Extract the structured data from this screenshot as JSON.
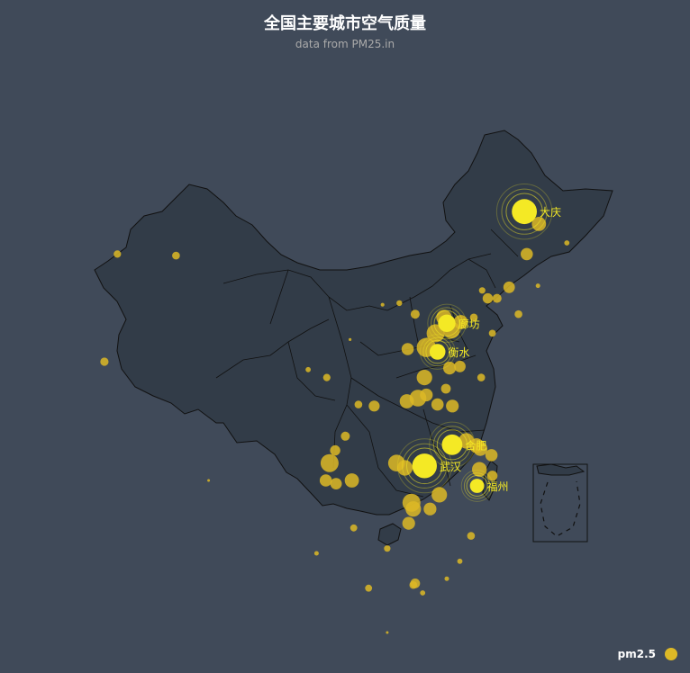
{
  "chart_data": {
    "type": "scatter",
    "title": "全国主要城市空气质量",
    "subtitle": "data from PM25.in",
    "legend": [
      "pm2.5"
    ],
    "legend_position": "bottom-right",
    "series": [
      {
        "name": "pm2.5",
        "points": [
          {
            "lon": 125.03,
            "lat": 46.58,
            "value": 279,
            "label": "大庆"
          },
          {
            "lon": 116.7,
            "lat": 39.53,
            "value": 193,
            "label": "廊坊"
          },
          {
            "lon": 115.7,
            "lat": 37.73,
            "value": 176,
            "label": "衡水"
          },
          {
            "lon": 117.27,
            "lat": 31.86,
            "value": 229,
            "label": "合肥"
          },
          {
            "lon": 114.31,
            "lat": 30.52,
            "value": 273,
            "label": "武汉"
          },
          {
            "lon": 119.95,
            "lat": 29.26,
            "value": 158,
            "label": "福州"
          }
        ]
      }
    ],
    "small_points": [
      [
        87.6,
        43.8,
        60
      ],
      [
        81.3,
        43.9,
        58
      ],
      [
        79.9,
        37.1,
        65
      ],
      [
        91.1,
        29.6,
        8
      ],
      [
        101.8,
        36.6,
        40
      ],
      [
        103.8,
        36.1,
        58
      ],
      [
        106.3,
        38.5,
        22
      ],
      [
        111.6,
        40.8,
        45
      ],
      [
        109.8,
        40.7,
        30
      ],
      [
        112.5,
        37.9,
        95
      ],
      [
        113.3,
        40.1,
        70
      ],
      [
        114.5,
        38.0,
        150
      ],
      [
        115.5,
        38.9,
        140
      ],
      [
        117.2,
        39.1,
        130
      ],
      [
        116.4,
        39.9,
        120
      ],
      [
        118.2,
        39.6,
        110
      ],
      [
        119.6,
        39.9,
        60
      ],
      [
        121.6,
        38.9,
        55
      ],
      [
        123.4,
        41.8,
        90
      ],
      [
        122.1,
        41.1,
        70
      ],
      [
        121.1,
        41.1,
        80
      ],
      [
        120.5,
        41.6,
        50
      ],
      [
        125.3,
        43.9,
        95
      ],
      [
        126.6,
        45.8,
        110
      ],
      [
        129.6,
        44.6,
        40
      ],
      [
        124.4,
        40.1,
        60
      ],
      [
        126.5,
        41.9,
        35
      ],
      [
        117.0,
        36.7,
        100
      ],
      [
        120.4,
        36.1,
        60
      ],
      [
        118.1,
        36.8,
        90
      ],
      [
        116.6,
        35.4,
        75
      ],
      [
        113.6,
        34.8,
        130
      ],
      [
        112.4,
        34.6,
        110
      ],
      [
        114.3,
        36.1,
        120
      ],
      [
        114.5,
        35.0,
        100
      ],
      [
        115.7,
        34.4,
        95
      ],
      [
        118.8,
        32.1,
        120
      ],
      [
        120.3,
        31.6,
        110
      ],
      [
        121.5,
        31.2,
        95
      ],
      [
        119.9,
        31.8,
        115
      ],
      [
        117.3,
        34.3,
        100
      ],
      [
        120.2,
        30.3,
        115
      ],
      [
        121.6,
        29.9,
        80
      ],
      [
        119.3,
        26.1,
        60
      ],
      [
        118.1,
        24.5,
        40
      ],
      [
        116.7,
        23.4,
        35
      ],
      [
        113.3,
        23.1,
        75
      ],
      [
        113.1,
        23.0,
        60
      ],
      [
        114.1,
        22.5,
        40
      ],
      [
        110.3,
        20.0,
        20
      ],
      [
        108.3,
        22.8,
        55
      ],
      [
        110.3,
        25.3,
        50
      ],
      [
        106.7,
        26.6,
        55
      ],
      [
        102.7,
        25.0,
        35
      ],
      [
        104.1,
        30.7,
        140
      ],
      [
        106.5,
        29.6,
        110
      ],
      [
        104.7,
        31.5,
        80
      ],
      [
        105.8,
        32.4,
        70
      ],
      [
        103.7,
        29.6,
        95
      ],
      [
        104.8,
        29.4,
        90
      ],
      [
        112.9,
        28.2,
        140
      ],
      [
        113.1,
        27.8,
        120
      ],
      [
        112.6,
        26.9,
        100
      ],
      [
        115.9,
        28.7,
        120
      ],
      [
        114.9,
        27.8,
        100
      ],
      [
        111.3,
        30.7,
        130
      ],
      [
        112.2,
        30.4,
        120
      ],
      [
        108.9,
        34.3,
        85
      ],
      [
        107.2,
        34.4,
        60
      ]
    ]
  },
  "colors": {
    "background": "#404a59",
    "land": "#323c48",
    "border": "#111111",
    "point": "#ddb926",
    "highlight": "#f4e925",
    "title": "#ffffff",
    "subtitle": "#aaaaaa"
  }
}
